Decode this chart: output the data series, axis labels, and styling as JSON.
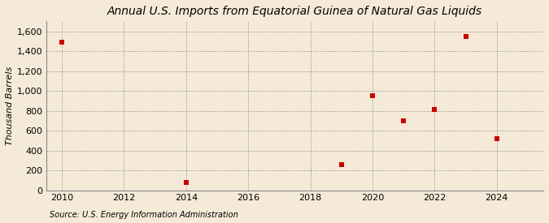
{
  "title": "Annual U.S. Imports from Equatorial Guinea of Natural Gas Liquids",
  "ylabel": "Thousand Barrels",
  "source": "Source: U.S. Energy Information Administration",
  "background_color": "#f5ead8",
  "years": [
    2010,
    2014,
    2019,
    2020,
    2021,
    2022,
    2023,
    2024
  ],
  "values": [
    1490,
    75,
    260,
    950,
    700,
    810,
    1550,
    520
  ],
  "marker_color": "#cc0000",
  "marker_size": 4,
  "xlim": [
    2009.5,
    2025.5
  ],
  "ylim": [
    0,
    1700
  ],
  "yticks": [
    0,
    200,
    400,
    600,
    800,
    1000,
    1200,
    1400,
    1600
  ],
  "xticks": [
    2010,
    2012,
    2014,
    2016,
    2018,
    2020,
    2022,
    2024
  ],
  "title_fontsize": 10,
  "label_fontsize": 8,
  "tick_fontsize": 8,
  "source_fontsize": 7
}
